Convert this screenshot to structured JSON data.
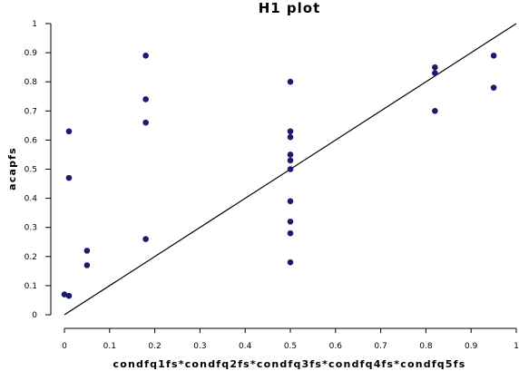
{
  "chart_data": {
    "type": "scatter",
    "title": "H1 plot",
    "xlabel": "condfq1fs*condfq2fs*condfq3fs*condfq4fs*condfq5fs",
    "ylabel": "acapfs",
    "xlim": [
      0,
      1
    ],
    "ylim": [
      0,
      1
    ],
    "xticks": [
      "0",
      "0.1",
      "0.2",
      "0.3",
      "0.4",
      "0.5",
      "0.6",
      "0.7",
      "0.8",
      "0.9",
      "1"
    ],
    "yticks": [
      "0",
      "0.1",
      "0.2",
      "0.3",
      "0.4",
      "0.5",
      "0.6",
      "0.7",
      "0.8",
      "0.9",
      "1"
    ],
    "grid": false,
    "legend": "none",
    "reference_line": {
      "from": [
        0,
        0
      ],
      "to": [
        1,
        1
      ]
    },
    "point_color": "#1c1a6e",
    "points": [
      {
        "x": 0.0,
        "y": 0.07
      },
      {
        "x": 0.01,
        "y": 0.065
      },
      {
        "x": 0.01,
        "y": 0.63
      },
      {
        "x": 0.01,
        "y": 0.47
      },
      {
        "x": 0.05,
        "y": 0.22
      },
      {
        "x": 0.05,
        "y": 0.17
      },
      {
        "x": 0.18,
        "y": 0.89
      },
      {
        "x": 0.18,
        "y": 0.74
      },
      {
        "x": 0.18,
        "y": 0.66
      },
      {
        "x": 0.18,
        "y": 0.26
      },
      {
        "x": 0.5,
        "y": 0.8
      },
      {
        "x": 0.5,
        "y": 0.63
      },
      {
        "x": 0.5,
        "y": 0.61
      },
      {
        "x": 0.5,
        "y": 0.55
      },
      {
        "x": 0.5,
        "y": 0.53
      },
      {
        "x": 0.5,
        "y": 0.5
      },
      {
        "x": 0.5,
        "y": 0.39
      },
      {
        "x": 0.5,
        "y": 0.32
      },
      {
        "x": 0.5,
        "y": 0.28
      },
      {
        "x": 0.5,
        "y": 0.18
      },
      {
        "x": 0.82,
        "y": 0.85
      },
      {
        "x": 0.82,
        "y": 0.83
      },
      {
        "x": 0.82,
        "y": 0.7
      },
      {
        "x": 0.95,
        "y": 0.89
      },
      {
        "x": 0.95,
        "y": 0.78
      }
    ]
  }
}
